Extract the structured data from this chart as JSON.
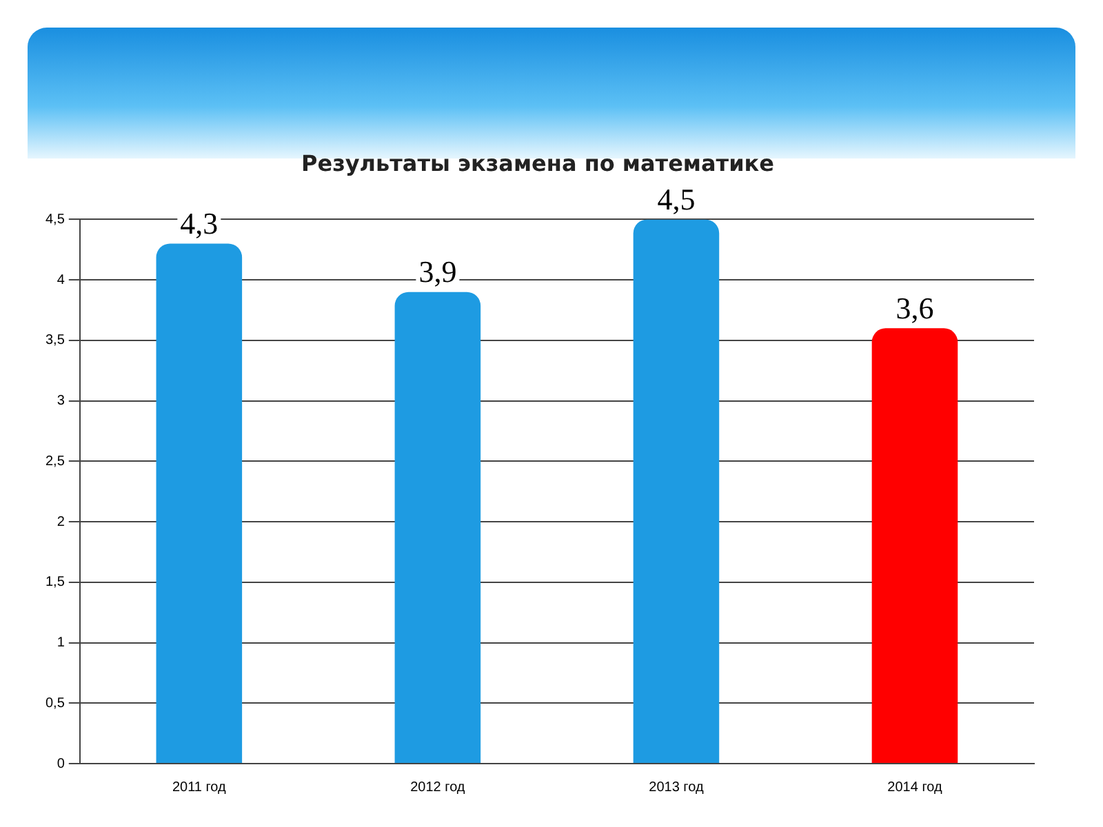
{
  "chart_data": {
    "type": "bar",
    "title": "Результаты экзамена по математике",
    "categories": [
      "2011 год",
      "2012 год",
      "2013 год",
      "2014 год"
    ],
    "values": [
      4.3,
      3.9,
      4.5,
      3.6
    ],
    "colors": [
      "#1e9be2",
      "#1e9be2",
      "#1e9be2",
      "#ff0000"
    ],
    "value_labels": [
      "4,3",
      "3,9",
      "4,5",
      "3,6"
    ],
    "ylim": [
      0,
      4.5
    ],
    "yticks": [
      0,
      {
        "value": 0.5,
        "label": "0,5"
      },
      1,
      {
        "value": 1.5,
        "label": "1,5"
      },
      2,
      {
        "value": 2.5,
        "label": "2,5"
      },
      3,
      {
        "value": 3.5,
        "label": "3,5"
      },
      4,
      {
        "value": 4.5,
        "label": "4,5"
      }
    ],
    "grid": "y"
  }
}
